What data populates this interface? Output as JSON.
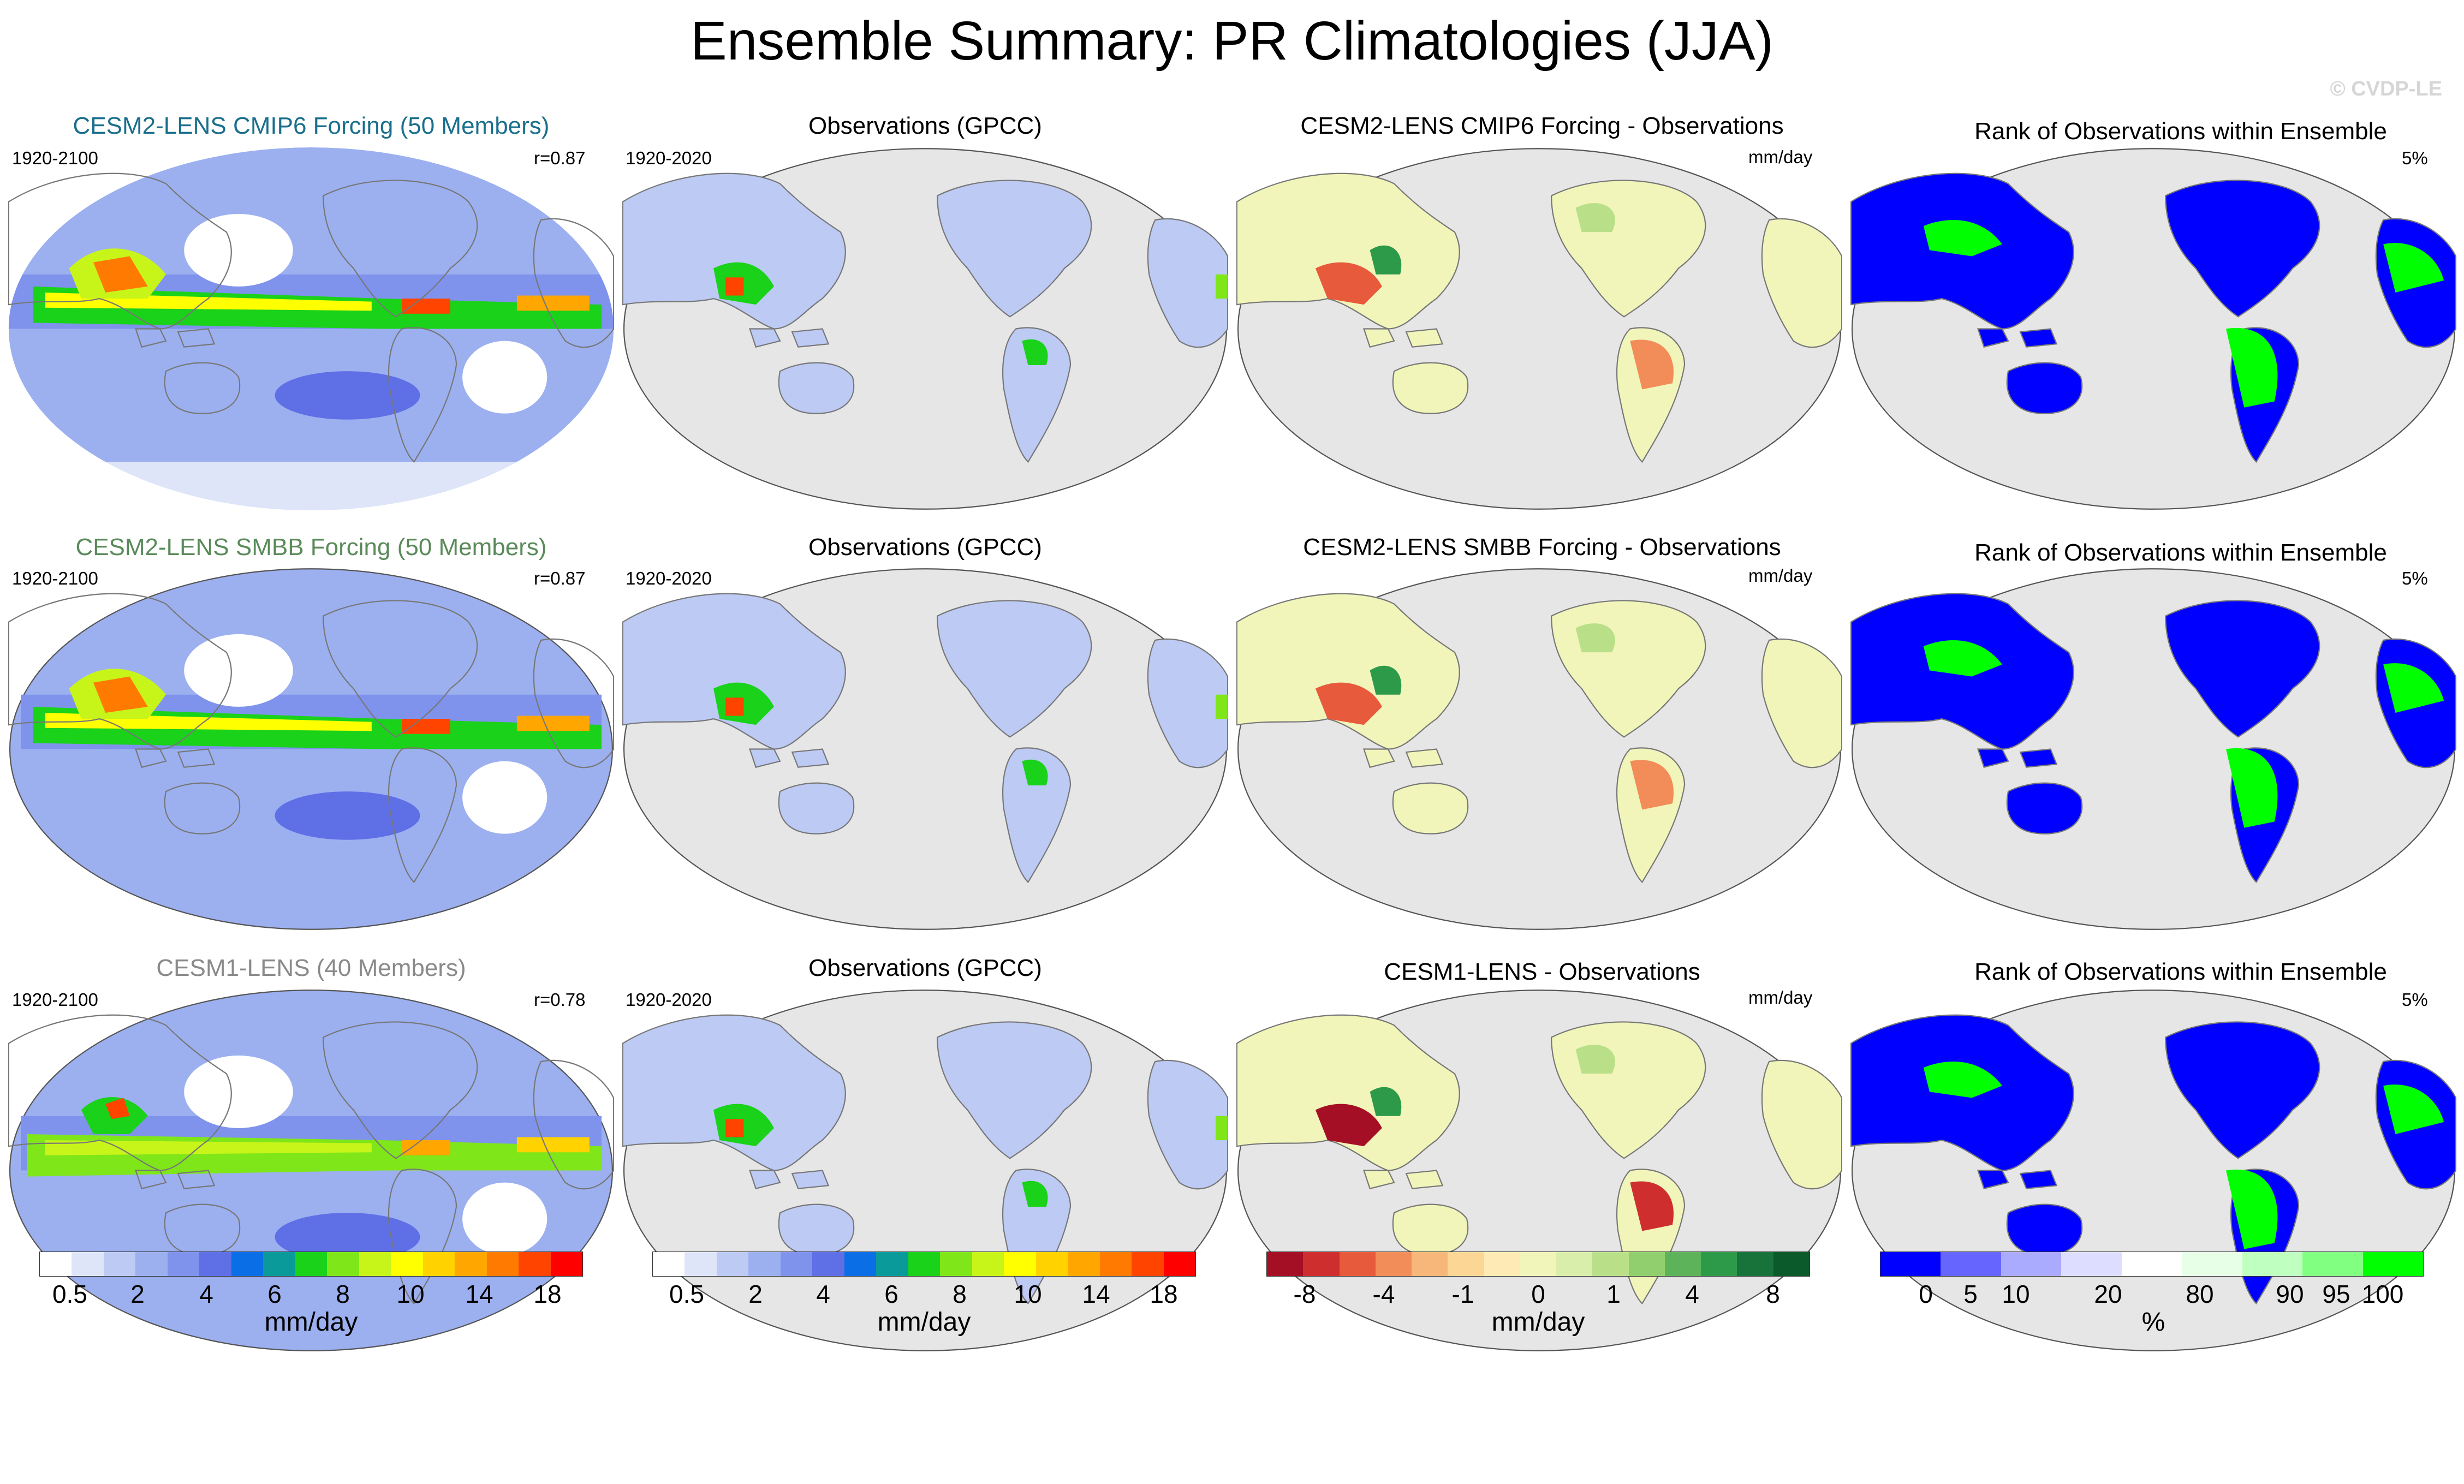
{
  "title": "Ensemble Summary: PR Climatologies (JJA)",
  "copyright": "© CVDP-LE",
  "rows": [
    {
      "model_title": "CESM2-LENS CMIP6 Forcing (50 Members)",
      "model_title_color": "#1a6f8c",
      "model_years": "1920-2100",
      "model_r": "r=0.87",
      "obs_title": "Observations (GPCC)",
      "obs_years": "1920-2020",
      "diff_title": "CESM2-LENS CMIP6 Forcing - Observations",
      "diff_units": "mm/day",
      "rank_title": "Rank of Observations within Ensemble",
      "rank_value": "5%"
    },
    {
      "model_title": "CESM2-LENS SMBB Forcing (50 Members)",
      "model_title_color": "#5a8a5a",
      "model_years": "1920-2100",
      "model_r": "r=0.87",
      "obs_title": "Observations (GPCC)",
      "obs_years": "1920-2020",
      "diff_title": "CESM2-LENS SMBB Forcing - Observations",
      "diff_units": "mm/day",
      "rank_title": "Rank of Observations within Ensemble",
      "rank_value": "5%"
    },
    {
      "model_title": "CESM1-LENS (40 Members)",
      "model_title_color": "#8a8a8a",
      "model_years": "1920-2100",
      "model_r": "r=0.78",
      "obs_title": "Observations (GPCC)",
      "obs_years": "1920-2020",
      "diff_title": "CESM1-LENS - Observations",
      "diff_units": "mm/day",
      "rank_title": "Rank of Observations within Ensemble",
      "rank_value": "5%"
    }
  ],
  "colorbars": [
    {
      "name": "precip-model",
      "colors": [
        "#ffffff",
        "#dfe5f8",
        "#bccaf4",
        "#9cb0f0",
        "#7f93ec",
        "#5f6fe6",
        "#0a6ee6",
        "#0a9a9a",
        "#19d219",
        "#7fe619",
        "#c8f519",
        "#ffff00",
        "#ffd200",
        "#ffa600",
        "#ff7a00",
        "#ff4400",
        "#ff0000"
      ],
      "ticks": [
        "0.5",
        "2",
        "4",
        "6",
        "8",
        "10",
        "14",
        "18"
      ],
      "units": "mm/day"
    },
    {
      "name": "precip-obs",
      "colors": [
        "#ffffff",
        "#dfe5f8",
        "#bccaf4",
        "#9cb0f0",
        "#7f93ec",
        "#5f6fe6",
        "#0a6ee6",
        "#0a9a9a",
        "#19d219",
        "#7fe619",
        "#c8f519",
        "#ffff00",
        "#ffd200",
        "#ffa600",
        "#ff7a00",
        "#ff4400",
        "#ff0000"
      ],
      "ticks": [
        "0.5",
        "2",
        "4",
        "6",
        "8",
        "10",
        "14",
        "18"
      ],
      "units": "mm/day"
    },
    {
      "name": "difference",
      "colors": [
        "#a50f26",
        "#cf2e2e",
        "#e85a3c",
        "#f28c59",
        "#f7b77a",
        "#fbd694",
        "#fdeab4",
        "#f1f5b9",
        "#d9eeaa",
        "#b9e088",
        "#91cf6e",
        "#5db35a",
        "#2d9a4a",
        "#17733a",
        "#0a5a2c"
      ],
      "ticks": [
        "-8",
        "-4",
        "-1",
        "0",
        "1",
        "4",
        "8"
      ],
      "units": "mm/day"
    },
    {
      "name": "rank",
      "colors": [
        "#0000ff",
        "#6666ff",
        "#aaaaff",
        "#ddddff",
        "#ffffff",
        "#e6ffe6",
        "#bfffbf",
        "#80ff80",
        "#00ff00"
      ],
      "ticks": [
        "0",
        "5",
        "10",
        "20",
        "80",
        "90",
        "95",
        "100"
      ],
      "units": "%"
    }
  ]
}
